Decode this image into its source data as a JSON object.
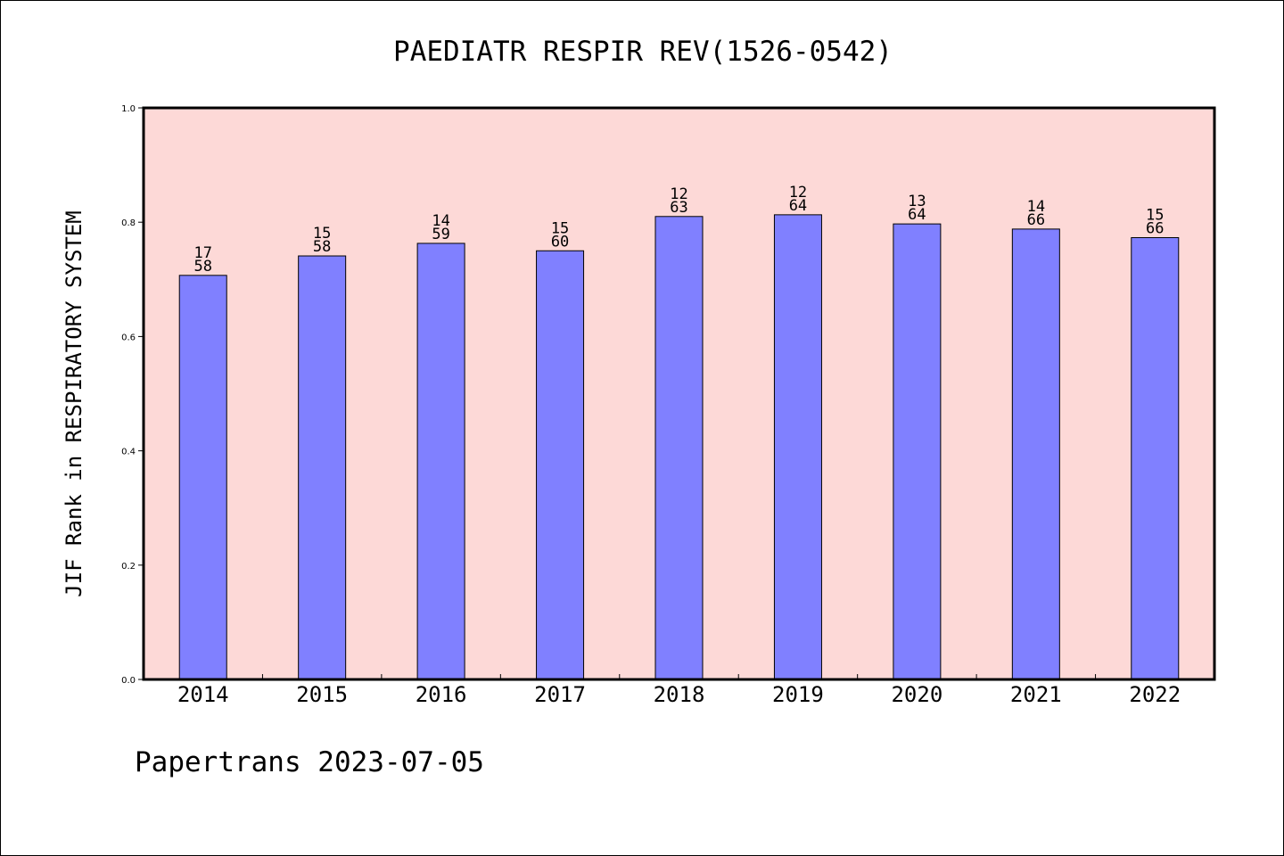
{
  "chart_data": {
    "type": "bar",
    "title": "PAEDIATR RESPIR REV(1526-0542)",
    "ylabel": "JIF Rank in RESPIRATORY SYSTEM",
    "xlabel": "",
    "ylim": [
      0,
      1.0
    ],
    "yticks": [
      "0.0",
      "0.2",
      "0.4",
      "0.6",
      "0.8",
      "1.0"
    ],
    "categories": [
      "2014",
      "2015",
      "2016",
      "2017",
      "2018",
      "2019",
      "2020",
      "2021",
      "2022"
    ],
    "values": [
      0.707,
      0.741,
      0.763,
      0.75,
      0.81,
      0.813,
      0.797,
      0.788,
      0.773
    ],
    "rank_labels": [
      {
        "rank": "17",
        "total": "58"
      },
      {
        "rank": "15",
        "total": "58"
      },
      {
        "rank": "14",
        "total": "59"
      },
      {
        "rank": "15",
        "total": "60"
      },
      {
        "rank": "12",
        "total": "63"
      },
      {
        "rank": "12",
        "total": "64"
      },
      {
        "rank": "13",
        "total": "64"
      },
      {
        "rank": "14",
        "total": "66"
      },
      {
        "rank": "15",
        "total": "66"
      }
    ],
    "grid": false,
    "colors": {
      "plot_background": "#fdd9d7",
      "bar_fill": "#8080ff",
      "bar_stroke": "#000000"
    }
  },
  "footer": {
    "credit": "Papertrans 2023-07-05"
  }
}
